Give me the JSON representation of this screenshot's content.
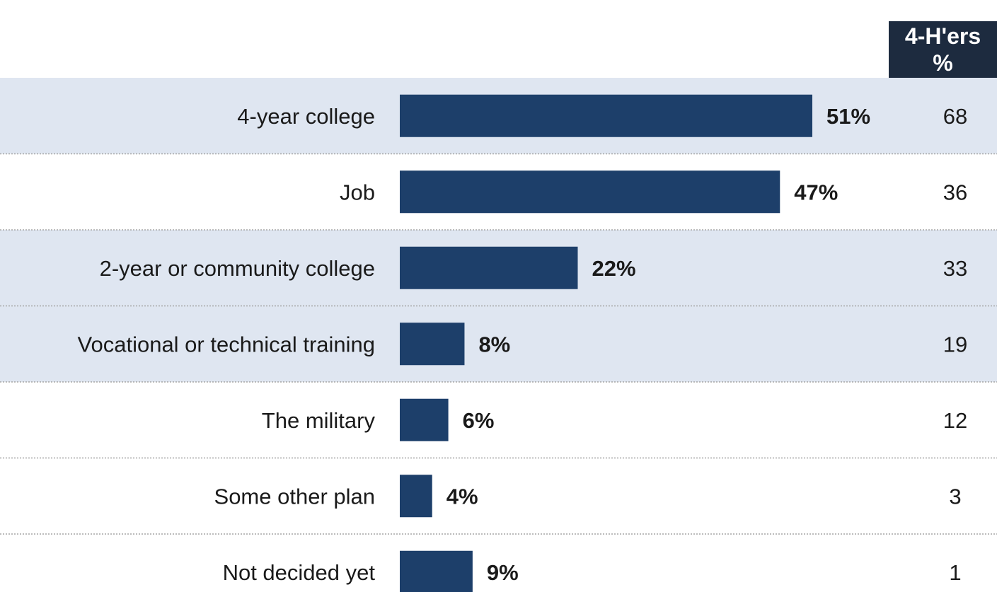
{
  "chart_data": {
    "type": "bar",
    "orientation": "horizontal",
    "categories": [
      "4-year college",
      "Job",
      "2-year or community college",
      "Vocational or technical training",
      "The military",
      "Some other plan",
      "Not decided yet"
    ],
    "values": [
      51,
      47,
      22,
      8,
      6,
      4,
      9
    ],
    "value_labels": [
      "51%",
      "47%",
      "22%",
      "8%",
      "6%",
      "4%",
      "9%"
    ],
    "comparison": {
      "header_line1": "4-H'ers",
      "header_line2": "%",
      "values": [
        "68",
        "36",
        "33",
        "19",
        "12",
        "3",
        "1"
      ]
    },
    "highlighted_rows": [
      true,
      false,
      true,
      true,
      false,
      false,
      false
    ],
    "xlim": [
      0,
      51
    ],
    "grid": false,
    "colors": {
      "bar": "#1d3f6a",
      "highlight": "#dfe6f1",
      "header_bg": "#1d2b3f",
      "separator": "#a6a6a6"
    }
  }
}
